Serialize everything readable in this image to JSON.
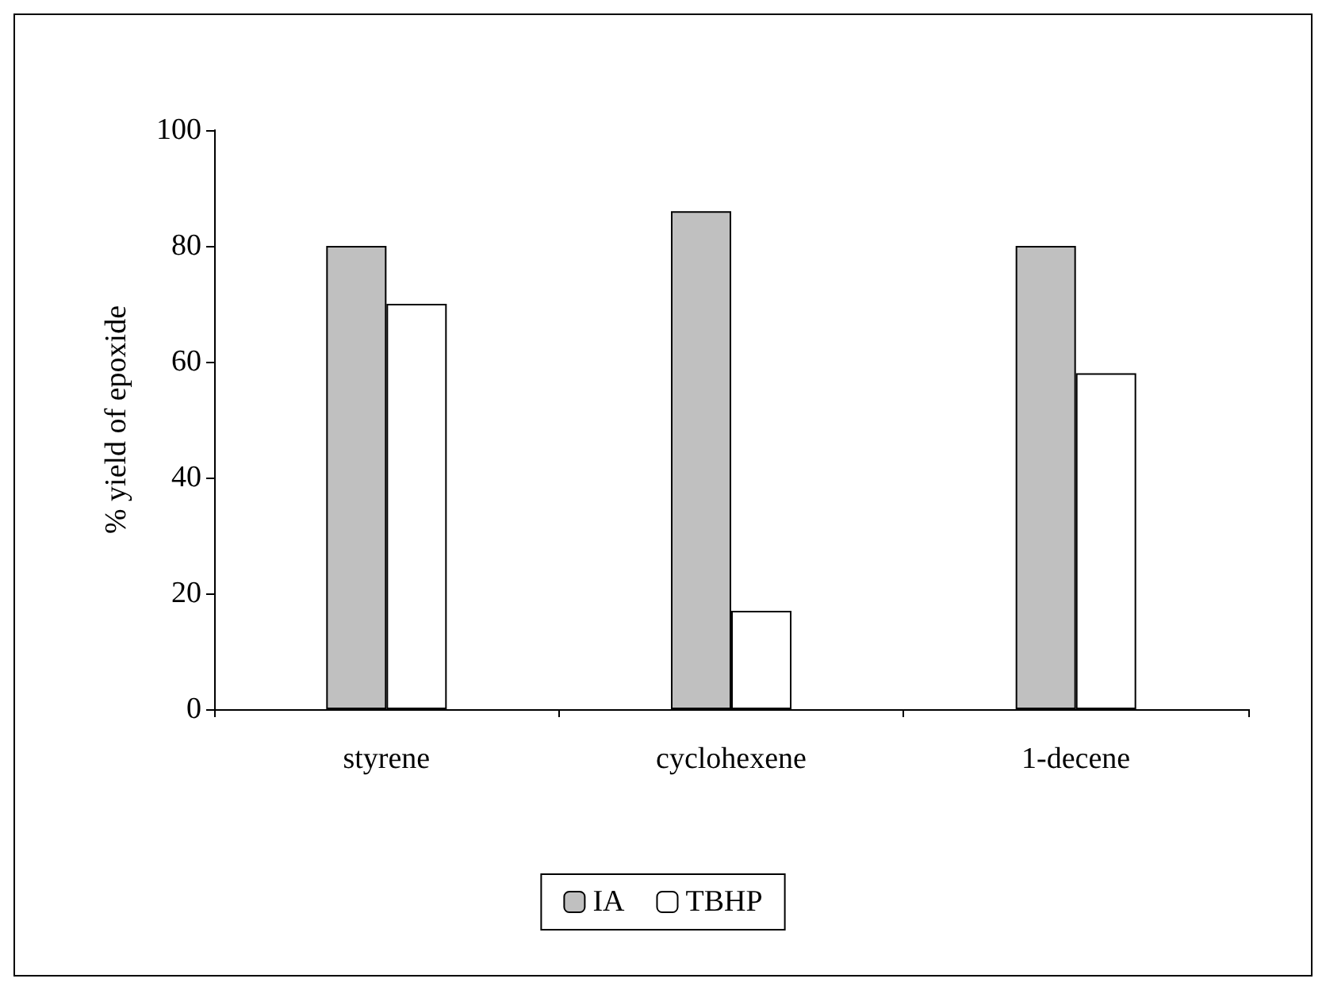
{
  "chart_data": {
    "type": "bar",
    "ylabel": "% yield of epoxide",
    "categories": [
      "styrene",
      "cyclohexene",
      "1-decene"
    ],
    "series": [
      {
        "name": "IA",
        "color": "#c0c0c0",
        "values": [
          80,
          86,
          80
        ]
      },
      {
        "name": "TBHP",
        "color": "#ffffff",
        "values": [
          70,
          17,
          58
        ]
      }
    ],
    "ylim": [
      0,
      100
    ],
    "yticks": [
      0,
      20,
      40,
      60,
      80,
      100
    ],
    "grid": false,
    "legend": "bottom"
  }
}
